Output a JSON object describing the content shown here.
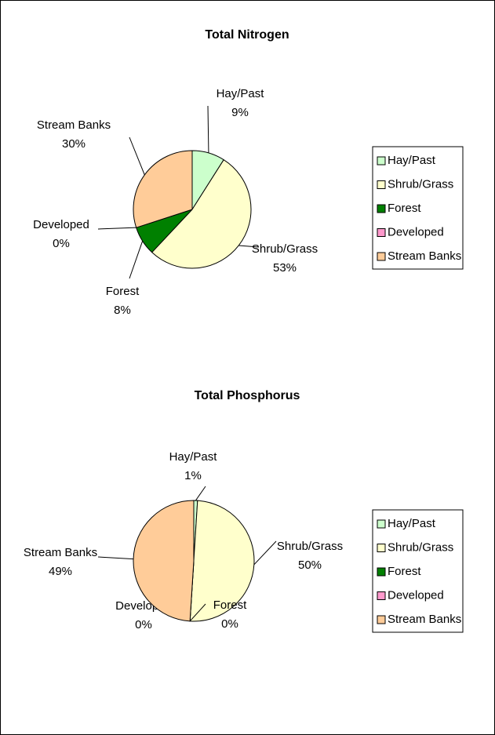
{
  "chart_data": [
    {
      "type": "pie",
      "title": "Total Nitrogen",
      "categories": [
        "Hay/Past",
        "Shrub/Grass",
        "Forest",
        "Developed",
        "Stream Banks"
      ],
      "values": [
        9,
        53,
        8,
        0,
        30
      ],
      "value_labels": [
        "9%",
        "53%",
        "8%",
        "0%",
        "30%"
      ],
      "colors": [
        "#ccffcc",
        "#ffffcc",
        "#008000",
        "#ff99cc",
        "#ffcc99"
      ],
      "legend": "right"
    },
    {
      "type": "pie",
      "title": "Total Phosphorus",
      "categories": [
        "Hay/Past",
        "Shrub/Grass",
        "Forest",
        "Developed",
        "Stream Banks"
      ],
      "values": [
        1,
        50,
        0,
        0,
        49
      ],
      "value_labels": [
        "1%",
        "50%",
        "0%",
        "0%",
        "49%"
      ],
      "colors": [
        "#ccffcc",
        "#ffffcc",
        "#008000",
        "#ff99cc",
        "#ffcc99"
      ],
      "legend": "right"
    }
  ]
}
